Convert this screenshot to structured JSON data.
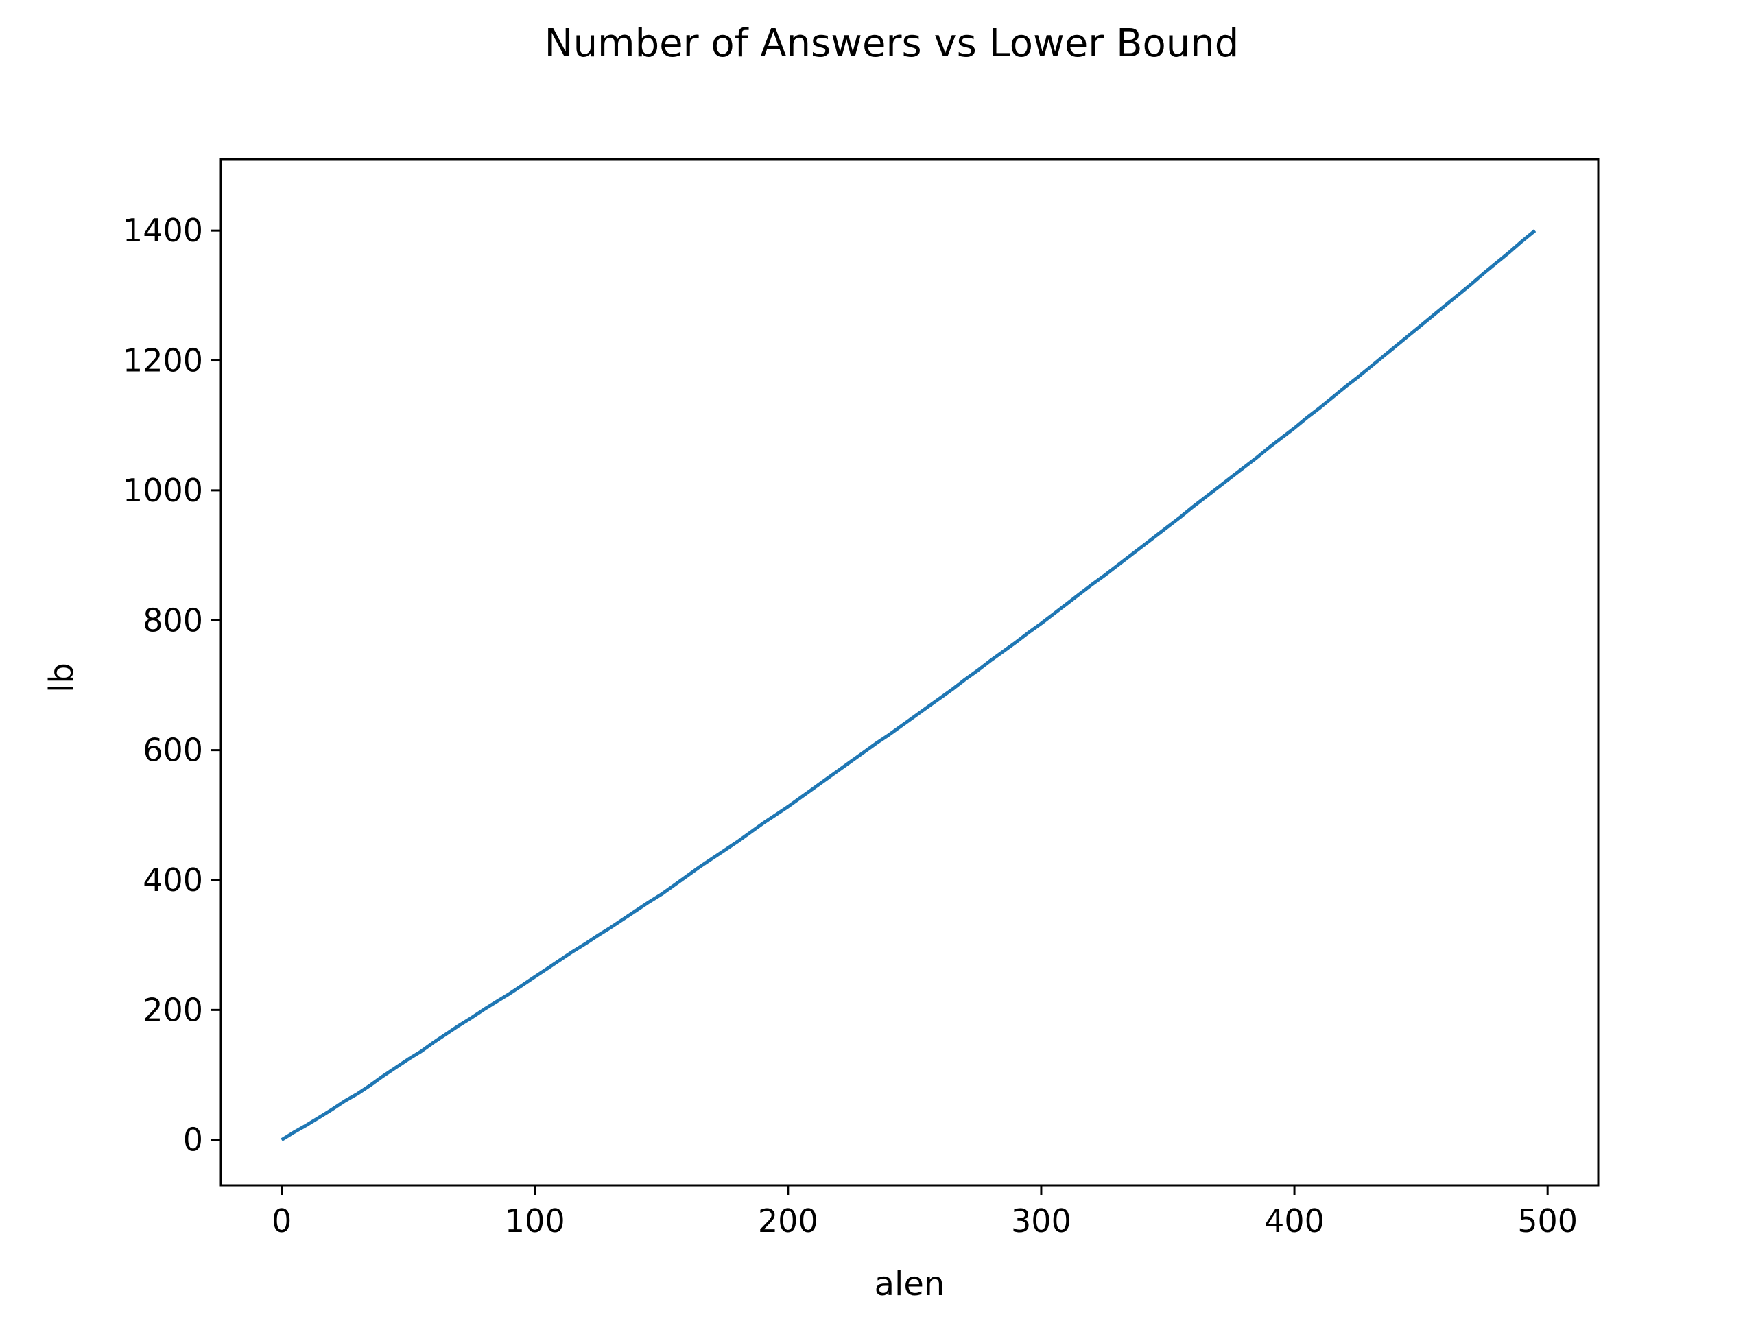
{
  "chart_data": {
    "type": "line",
    "title": "Number of Answers vs Lower Bound",
    "xlabel": "alen",
    "ylabel": "lb",
    "xlim": [
      -24,
      520
    ],
    "ylim": [
      -70,
      1510
    ],
    "xticks": [
      0,
      100,
      200,
      300,
      400,
      500
    ],
    "yticks": [
      0,
      200,
      400,
      600,
      800,
      1000,
      1200,
      1400
    ],
    "grid": false,
    "series": [
      {
        "color": "#1f77b4",
        "x": [
          0,
          5,
          10,
          15,
          20,
          25,
          30,
          35,
          40,
          45,
          50,
          55,
          60,
          65,
          70,
          75,
          80,
          85,
          90,
          95,
          100,
          105,
          110,
          115,
          120,
          125,
          130,
          135,
          140,
          145,
          150,
          155,
          160,
          165,
          170,
          175,
          180,
          185,
          190,
          195,
          200,
          205,
          210,
          215,
          220,
          225,
          230,
          235,
          240,
          245,
          250,
          255,
          260,
          265,
          270,
          275,
          280,
          285,
          290,
          295,
          300,
          305,
          310,
          315,
          320,
          325,
          330,
          335,
          340,
          345,
          350,
          355,
          360,
          365,
          370,
          375,
          380,
          385,
          390,
          395,
          400,
          405,
          410,
          415,
          420,
          425,
          430,
          435,
          440,
          445,
          450,
          455,
          460,
          465,
          470,
          475,
          480,
          485,
          490,
          495
        ],
        "y": [
          0,
          12,
          23,
          35,
          47,
          60,
          71,
          84,
          98,
          111,
          124,
          136,
          150,
          163,
          176,
          188,
          201,
          213,
          225,
          238,
          251,
          264,
          277,
          290,
          302,
          315,
          327,
          340,
          353,
          366,
          378,
          392,
          406,
          420,
          433,
          446,
          459,
          473,
          487,
          500,
          513,
          527,
          541,
          555,
          569,
          583,
          597,
          611,
          624,
          638,
          652,
          666,
          680,
          694,
          709,
          723,
          738,
          752,
          766,
          781,
          795,
          810,
          825,
          840,
          855,
          869,
          884,
          899,
          914,
          929,
          944,
          959,
          975,
          990,
          1005,
          1020,
          1035,
          1050,
          1066,
          1081,
          1096,
          1112,
          1127,
          1143,
          1159,
          1174,
          1190,
          1206,
          1222,
          1238,
          1254,
          1270,
          1286,
          1302,
          1318,
          1335,
          1351,
          1367,
          1384,
          1400
        ]
      }
    ]
  }
}
